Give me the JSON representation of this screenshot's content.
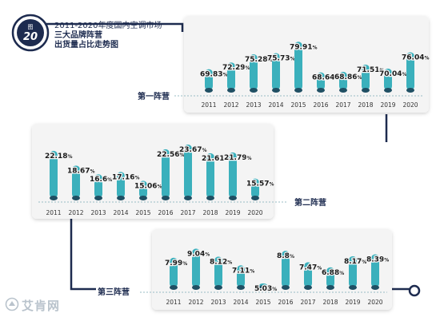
{
  "figure": {
    "badge_label": "图",
    "badge_number": "20",
    "title_line1": "2011-2020年度国内空调市场",
    "title_line2": "三大品牌阵营",
    "title_line3": "出货量占比走势图"
  },
  "watermark": "艾肯网",
  "colors": {
    "bar": "#3bb0bc",
    "bar_base": "#1f4f63",
    "navy": "#1d2b4f",
    "panel": "#f4f4f4"
  },
  "chart_data": [
    {
      "type": "bar",
      "title": "第一阵营",
      "categories": [
        "2011",
        "2012",
        "2013",
        "2014",
        "2015",
        "2016",
        "2017",
        "2018",
        "2019",
        "2020"
      ],
      "values": [
        69.83,
        72.29,
        75.28,
        75.73,
        79.91,
        68.64,
        68.86,
        71.51,
        70.04,
        76.04
      ],
      "value_labels": [
        "69.83",
        "72.29",
        "75.28",
        "75.73",
        "79.91",
        "68.64",
        "68.86",
        "71.51",
        "70.04",
        "76.04"
      ],
      "unit": "%"
    },
    {
      "type": "bar",
      "title": "第二阵营",
      "categories": [
        "2011",
        "2012",
        "2013",
        "2014",
        "2015",
        "2016",
        "2017",
        "2018",
        "2019",
        "2020"
      ],
      "values": [
        22.18,
        18.67,
        16.6,
        17.16,
        15.06,
        22.56,
        23.67,
        21.61,
        21.79,
        15.57
      ],
      "value_labels": [
        "22.18",
        "18.67",
        "16.6",
        "17.16",
        "15.06",
        "22.56",
        "23.67",
        "21.61",
        "21.79",
        "15.57"
      ],
      "unit": "%"
    },
    {
      "type": "bar",
      "title": "第三阵营",
      "categories": [
        "2011",
        "2012",
        "2013",
        "2014",
        "2015",
        "2016",
        "2017",
        "2018",
        "2019",
        "2020"
      ],
      "values": [
        7.99,
        9.04,
        8.12,
        7.11,
        5.03,
        8.8,
        7.47,
        6.88,
        8.17,
        8.39
      ],
      "value_labels": [
        "7.99",
        "9.04",
        "8.12",
        "7.11",
        "5.03",
        "8.8",
        "7.47",
        "6.88",
        "8.17",
        "8.39"
      ],
      "unit": "%"
    }
  ]
}
